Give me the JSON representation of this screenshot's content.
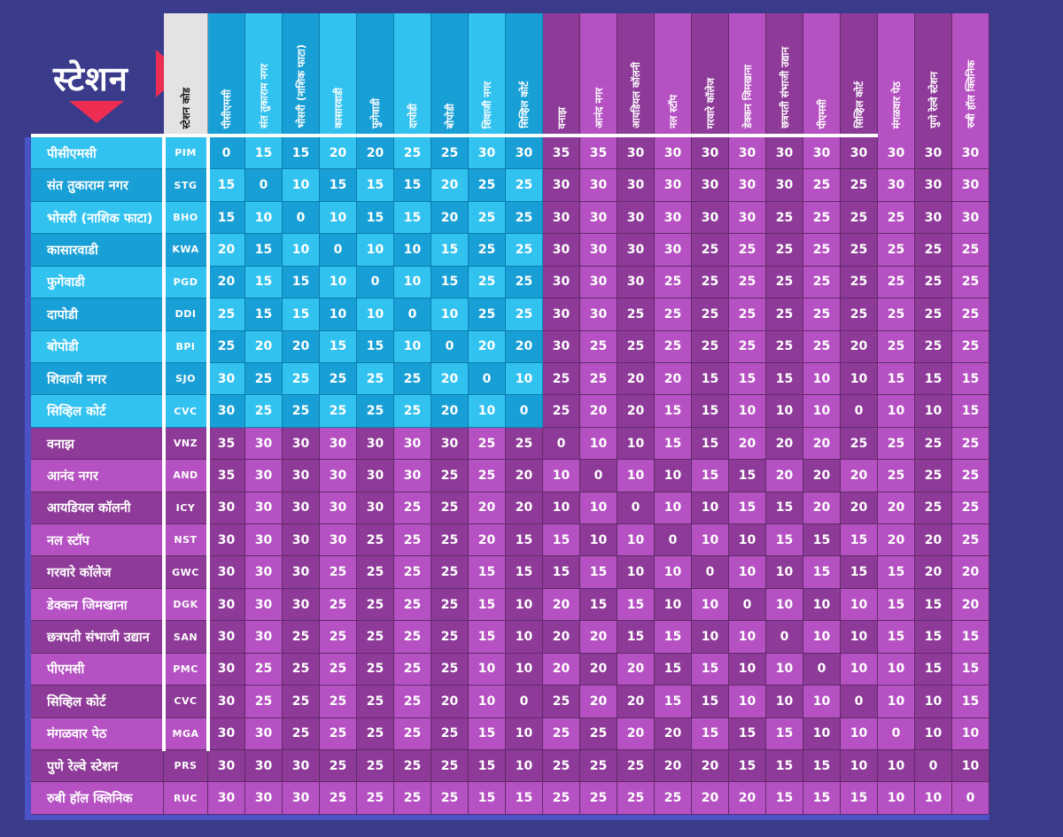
{
  "title": "स्टेशन",
  "code_header": "स्टेशन कोड",
  "colors": {
    "background": "#3b3b8c",
    "cyan_dark": "#189fd6",
    "cyan_light": "#31c2f0",
    "purple_dark": "#8e3a98",
    "purple_light": "#b551c2",
    "header_gray": "#e4e2e4",
    "accent_red": "#ee2d52",
    "accent_blue": "#4a53c6",
    "text_white": "#ffffff"
  },
  "chart_data": {
    "type": "table",
    "title": "स्टेशन",
    "code_column_header": "स्टेशन कोड",
    "stations": [
      {
        "name": "पीसीएमसी",
        "code": "PIM",
        "line": "aqua"
      },
      {
        "name": "संत तुकाराम नगर",
        "code": "STG",
        "line": "aqua"
      },
      {
        "name": "भोसरी (नाशिक फाटा)",
        "code": "BHO",
        "line": "aqua"
      },
      {
        "name": "कासारवाडी",
        "code": "KWA",
        "line": "aqua"
      },
      {
        "name": "फुगेवाडी",
        "code": "PGD",
        "line": "aqua"
      },
      {
        "name": "दापोडी",
        "code": "DDI",
        "line": "aqua"
      },
      {
        "name": "बोपोडी",
        "code": "BPI",
        "line": "aqua"
      },
      {
        "name": "शिवाजी नगर",
        "code": "SJO",
        "line": "aqua"
      },
      {
        "name": "सिव्हिल कोर्ट",
        "code": "CVC",
        "line": "aqua"
      },
      {
        "name": "वनाझ",
        "code": "VNZ",
        "line": "purple"
      },
      {
        "name": "आनंद नगर",
        "code": "AND",
        "line": "purple"
      },
      {
        "name": "आयडियल कॉलनी",
        "code": "ICY",
        "line": "purple"
      },
      {
        "name": "नल स्टॉप",
        "code": "NST",
        "line": "purple"
      },
      {
        "name": "गरवारे कॉलेज",
        "code": "GWC",
        "line": "purple"
      },
      {
        "name": "डेक्कन जिमखाना",
        "code": "DGK",
        "line": "purple"
      },
      {
        "name": "छत्रपती संभाजी उद्यान",
        "code": "SAN",
        "line": "purple"
      },
      {
        "name": "पीएमसी",
        "code": "PMC",
        "line": "purple"
      },
      {
        "name": "सिव्हिल कोर्ट",
        "code": "CVC",
        "line": "purple"
      },
      {
        "name": "मंगळवार पेठ",
        "code": "MGA",
        "line": "purple"
      },
      {
        "name": "पुणे रेल्वे स्टेशन",
        "code": "PRS",
        "line": "purple"
      },
      {
        "name": "रुबी हॉल क्लिनिक",
        "code": "RUC",
        "line": "purple"
      }
    ],
    "fare_matrix": [
      [
        0,
        15,
        15,
        20,
        20,
        25,
        25,
        30,
        30,
        35,
        35,
        30,
        30,
        30,
        30,
        30,
        30,
        30,
        30,
        30,
        30
      ],
      [
        15,
        0,
        10,
        15,
        15,
        15,
        20,
        25,
        25,
        30,
        30,
        30,
        30,
        30,
        30,
        30,
        25,
        25,
        30,
        30,
        30
      ],
      [
        15,
        10,
        0,
        10,
        15,
        15,
        20,
        25,
        25,
        30,
        30,
        30,
        30,
        30,
        30,
        25,
        25,
        25,
        25,
        30,
        30
      ],
      [
        20,
        15,
        10,
        0,
        10,
        10,
        15,
        25,
        25,
        30,
        30,
        30,
        30,
        25,
        25,
        25,
        25,
        25,
        25,
        25,
        25
      ],
      [
        20,
        15,
        15,
        10,
        0,
        10,
        15,
        25,
        25,
        30,
        30,
        30,
        25,
        25,
        25,
        25,
        25,
        25,
        25,
        25,
        25
      ],
      [
        25,
        15,
        15,
        10,
        10,
        0,
        10,
        25,
        25,
        30,
        30,
        25,
        25,
        25,
        25,
        25,
        25,
        25,
        25,
        25,
        25
      ],
      [
        25,
        20,
        20,
        15,
        15,
        10,
        0,
        20,
        20,
        30,
        25,
        25,
        25,
        25,
        25,
        25,
        25,
        20,
        25,
        25,
        25
      ],
      [
        30,
        25,
        25,
        25,
        25,
        25,
        20,
        0,
        10,
        25,
        25,
        20,
        20,
        15,
        15,
        15,
        10,
        10,
        15,
        15,
        15
      ],
      [
        30,
        25,
        25,
        25,
        25,
        25,
        20,
        10,
        0,
        25,
        20,
        20,
        15,
        15,
        10,
        10,
        10,
        0,
        10,
        10,
        15
      ],
      [
        35,
        30,
        30,
        30,
        30,
        30,
        30,
        25,
        25,
        0,
        10,
        10,
        15,
        15,
        20,
        20,
        20,
        25,
        25,
        25,
        25
      ],
      [
        35,
        30,
        30,
        30,
        30,
        30,
        25,
        25,
        20,
        10,
        0,
        10,
        10,
        15,
        15,
        20,
        20,
        20,
        25,
        25,
        25
      ],
      [
        30,
        30,
        30,
        30,
        30,
        25,
        25,
        20,
        20,
        10,
        10,
        0,
        10,
        10,
        15,
        15,
        20,
        20,
        20,
        25,
        25
      ],
      [
        30,
        30,
        30,
        30,
        25,
        25,
        25,
        20,
        15,
        15,
        10,
        10,
        0,
        10,
        10,
        15,
        15,
        15,
        20,
        20,
        25
      ],
      [
        30,
        30,
        30,
        25,
        25,
        25,
        25,
        15,
        15,
        15,
        15,
        10,
        10,
        0,
        10,
        10,
        15,
        15,
        15,
        20,
        20
      ],
      [
        30,
        30,
        30,
        25,
        25,
        25,
        25,
        15,
        10,
        20,
        15,
        15,
        10,
        10,
        0,
        10,
        10,
        10,
        15,
        15,
        20
      ],
      [
        30,
        30,
        25,
        25,
        25,
        25,
        25,
        15,
        10,
        20,
        20,
        15,
        15,
        10,
        10,
        0,
        10,
        10,
        15,
        15,
        15
      ],
      [
        30,
        25,
        25,
        25,
        25,
        25,
        25,
        10,
        10,
        20,
        20,
        20,
        15,
        15,
        10,
        10,
        0,
        10,
        10,
        15,
        15
      ],
      [
        30,
        25,
        25,
        25,
        25,
        25,
        20,
        10,
        0,
        25,
        20,
        20,
        15,
        15,
        10,
        10,
        10,
        0,
        10,
        10,
        15
      ],
      [
        30,
        30,
        25,
        25,
        25,
        25,
        25,
        15,
        10,
        25,
        25,
        20,
        20,
        15,
        15,
        15,
        10,
        10,
        0,
        10,
        10
      ],
      [
        30,
        30,
        30,
        25,
        25,
        25,
        25,
        15,
        10,
        25,
        25,
        25,
        20,
        20,
        15,
        15,
        15,
        10,
        10,
        0,
        10
      ],
      [
        30,
        30,
        30,
        25,
        25,
        25,
        25,
        15,
        15,
        25,
        25,
        25,
        25,
        20,
        20,
        15,
        15,
        15,
        10,
        10,
        0
      ]
    ]
  }
}
